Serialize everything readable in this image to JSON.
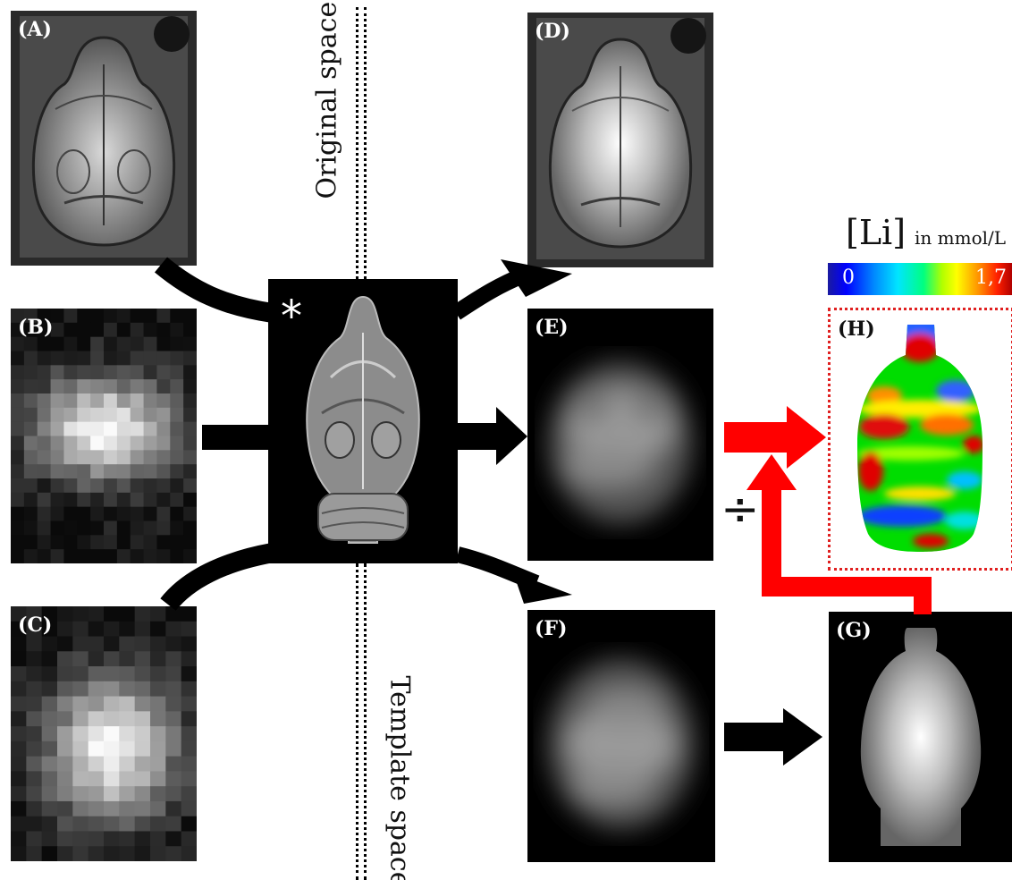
{
  "labels": {
    "a": "(A)",
    "b": "(B)",
    "c": "(C)",
    "d": "(D)",
    "e": "(E)",
    "f": "(F)",
    "g": "(G)",
    "h": "(H)"
  },
  "asterisk": "*",
  "space_labels": {
    "original": "Original  space",
    "template": "Template space"
  },
  "colorbar": {
    "title": "[Li]",
    "unit": "in mmol/L",
    "min": "0",
    "max": "1,7"
  },
  "divide_symbol": "÷",
  "colors": {
    "red_arrow": "#ff0000",
    "black_arrow": "#000000",
    "dotted_border": "#e02020"
  }
}
